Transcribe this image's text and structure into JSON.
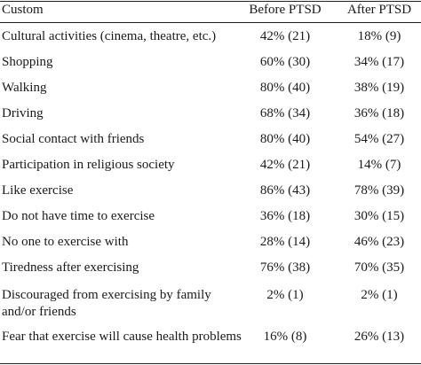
{
  "table": {
    "headers": [
      "Custom",
      "Before PTSD",
      "After PTSD"
    ],
    "rows": [
      {
        "custom": "Cultural activities (cinema, theatre, etc.)",
        "before": "42% (21)",
        "after": "18% (9)"
      },
      {
        "custom": "Shopping",
        "before": "60% (30)",
        "after": "34% (17)"
      },
      {
        "custom": "Walking",
        "before": "80% (40)",
        "after": "38% (19)"
      },
      {
        "custom": "Driving",
        "before": "68% (34)",
        "after": "36% (18)"
      },
      {
        "custom": "Social contact with friends",
        "before": "80% (40)",
        "after": "54% (27)"
      },
      {
        "custom": "Participation in religious society",
        "before": "42% (21)",
        "after": "14% (7)"
      },
      {
        "custom": "Like exercise",
        "before": "86% (43)",
        "after": "78% (39)"
      },
      {
        "custom": "Do not have time to exercise",
        "before": "36% (18)",
        "after": "30% (15)"
      },
      {
        "custom": "No one to exercise with",
        "before": "28% (14)",
        "after": "46% (23)"
      },
      {
        "custom": "Tiredness after exercising",
        "before": "76% (38)",
        "after": "70% (35)"
      },
      {
        "custom": "Discouraged from exercising by family and/or friends",
        "before": "2% (1)",
        "after": "2% (1)"
      },
      {
        "custom": "Fear that exercise will cause health problems",
        "before": "16% (8)",
        "after": "26% (13)"
      }
    ]
  }
}
